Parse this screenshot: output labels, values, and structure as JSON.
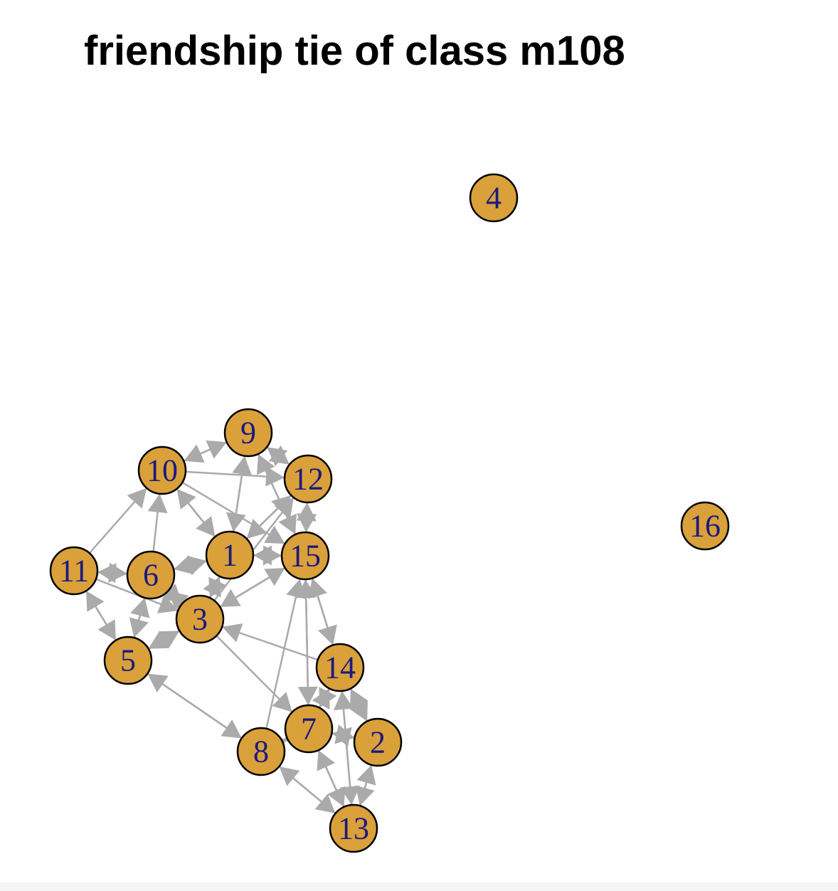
{
  "title": "friendship tie of class m108",
  "colors": {
    "node_fill": "#DAA03A",
    "node_stroke": "#000000",
    "label": "#1A1A80",
    "edge": "#AAAAAA"
  },
  "network": {
    "directed": true,
    "nodes": [
      {
        "id": "1",
        "label": "1"
      },
      {
        "id": "2",
        "label": "2"
      },
      {
        "id": "3",
        "label": "3"
      },
      {
        "id": "4",
        "label": "4"
      },
      {
        "id": "5",
        "label": "5"
      },
      {
        "id": "6",
        "label": "6"
      },
      {
        "id": "7",
        "label": "7"
      },
      {
        "id": "8",
        "label": "8"
      },
      {
        "id": "9",
        "label": "9"
      },
      {
        "id": "10",
        "label": "10"
      },
      {
        "id": "11",
        "label": "11"
      },
      {
        "id": "12",
        "label": "12"
      },
      {
        "id": "13",
        "label": "13"
      },
      {
        "id": "14",
        "label": "14"
      },
      {
        "id": "15",
        "label": "15"
      },
      {
        "id": "16",
        "label": "16"
      }
    ],
    "edges": [
      {
        "from": "1",
        "to": "12"
      },
      {
        "from": "1",
        "to": "15"
      },
      {
        "from": "1",
        "to": "9"
      },
      {
        "from": "1",
        "to": "6"
      },
      {
        "from": "1",
        "to": "3"
      },
      {
        "from": "1",
        "to": "10"
      },
      {
        "from": "2",
        "to": "13"
      },
      {
        "from": "2",
        "to": "14"
      },
      {
        "from": "2",
        "to": "7"
      },
      {
        "from": "3",
        "to": "1"
      },
      {
        "from": "3",
        "to": "15"
      },
      {
        "from": "3",
        "to": "7"
      },
      {
        "from": "3",
        "to": "5"
      },
      {
        "from": "3",
        "to": "6"
      },
      {
        "from": "3",
        "to": "12"
      },
      {
        "from": "5",
        "to": "11"
      },
      {
        "from": "5",
        "to": "8"
      },
      {
        "from": "5",
        "to": "6"
      },
      {
        "from": "5",
        "to": "3"
      },
      {
        "from": "6",
        "to": "10"
      },
      {
        "from": "6",
        "to": "1"
      },
      {
        "from": "6",
        "to": "5"
      },
      {
        "from": "6",
        "to": "11"
      },
      {
        "from": "6",
        "to": "3"
      },
      {
        "from": "7",
        "to": "14"
      },
      {
        "from": "7",
        "to": "13"
      },
      {
        "from": "7",
        "to": "2"
      },
      {
        "from": "7",
        "to": "8"
      },
      {
        "from": "7",
        "to": "15"
      },
      {
        "from": "8",
        "to": "5"
      },
      {
        "from": "8",
        "to": "13"
      },
      {
        "from": "8",
        "to": "7"
      },
      {
        "from": "8",
        "to": "15"
      },
      {
        "from": "9",
        "to": "10"
      },
      {
        "from": "9",
        "to": "12"
      },
      {
        "from": "9",
        "to": "15"
      },
      {
        "from": "9",
        "to": "1"
      },
      {
        "from": "10",
        "to": "9"
      },
      {
        "from": "10",
        "to": "12"
      },
      {
        "from": "10",
        "to": "1"
      },
      {
        "from": "10",
        "to": "15"
      },
      {
        "from": "11",
        "to": "10"
      },
      {
        "from": "11",
        "to": "5"
      },
      {
        "from": "11",
        "to": "6"
      },
      {
        "from": "11",
        "to": "3"
      },
      {
        "from": "12",
        "to": "9"
      },
      {
        "from": "12",
        "to": "15"
      },
      {
        "from": "12",
        "to": "1"
      },
      {
        "from": "13",
        "to": "7"
      },
      {
        "from": "13",
        "to": "2"
      },
      {
        "from": "13",
        "to": "14"
      },
      {
        "from": "13",
        "to": "8"
      },
      {
        "from": "14",
        "to": "7"
      },
      {
        "from": "14",
        "to": "2"
      },
      {
        "from": "14",
        "to": "15"
      },
      {
        "from": "14",
        "to": "13"
      },
      {
        "from": "14",
        "to": "3"
      },
      {
        "from": "15",
        "to": "12"
      },
      {
        "from": "15",
        "to": "1"
      },
      {
        "from": "15",
        "to": "9"
      },
      {
        "from": "15",
        "to": "14"
      },
      {
        "from": "15",
        "to": "3"
      },
      {
        "from": "15",
        "to": "7"
      }
    ]
  }
}
